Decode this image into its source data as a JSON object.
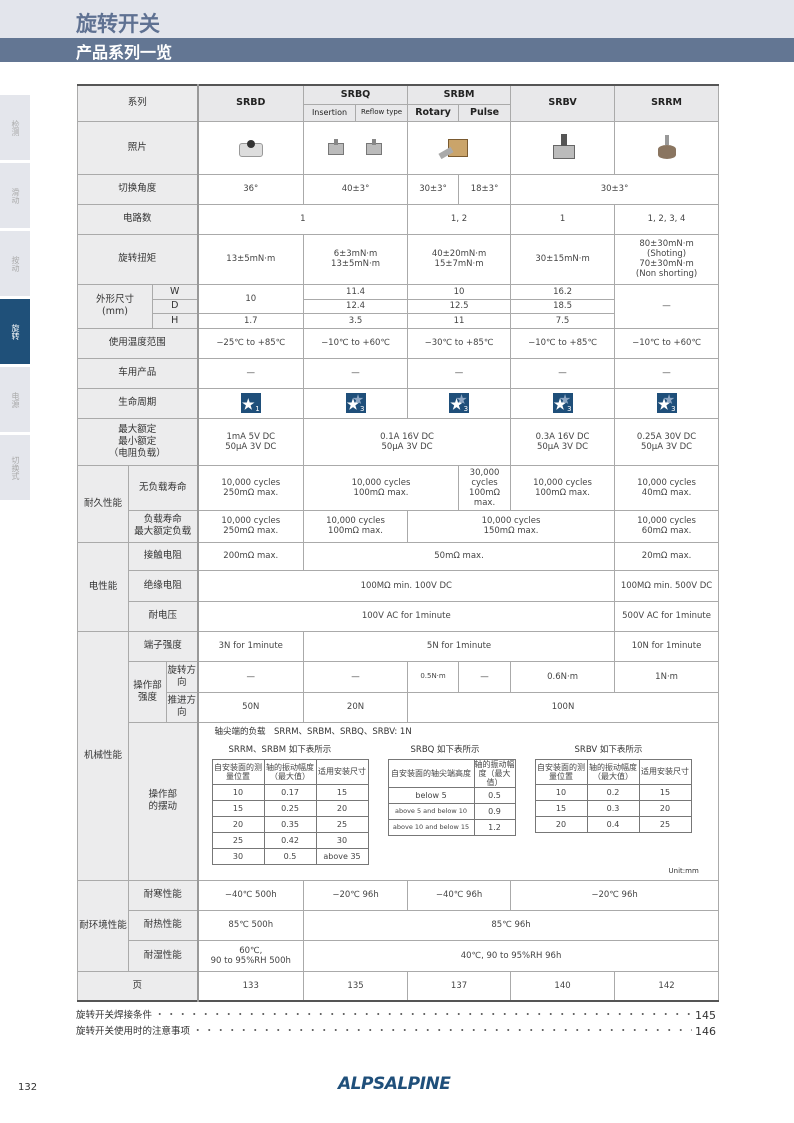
{
  "header": {
    "title": "旋转开关",
    "subtitle": "产品系列一览"
  },
  "sidebar": {
    "tabs": [
      {
        "label": "检测"
      },
      {
        "label": "滑动"
      },
      {
        "label": "按动"
      },
      {
        "label": "旋转",
        "active": true
      },
      {
        "label": "电源"
      },
      {
        "label": "切换式"
      }
    ],
    "active_color": "#1f5079"
  },
  "table": {
    "series_label": "系列",
    "cols": {
      "srbd": "SRBD",
      "srbq": "SRBQ",
      "srbq_a": "Insertion",
      "srbq_b": "Reflow type",
      "srbm": "SRBM",
      "srbm_a": "Rotary",
      "srbm_b": "Pulse",
      "srbv": "SRBV",
      "srrm": "SRRM"
    },
    "photo": {
      "label": "照片"
    },
    "angle": {
      "label": "切换角度",
      "srbd": "36°",
      "srbq": "40±3°",
      "srbm_a": "30±3°",
      "srbm_b": "18±3°",
      "srbv_srrm": "30±3°"
    },
    "circuits": {
      "label": "电路数",
      "srbd_srbq": "1",
      "srbm": "1, 2",
      "srbv": "1",
      "srrm": "1, 2, 3, 4"
    },
    "torque": {
      "label": "旋转扭矩",
      "srbd": "13±5mN·m",
      "srbq": [
        "6±3mN·m",
        "13±5mN·m"
      ],
      "srbm": [
        "40±20mN·m",
        "15±7mN·m"
      ],
      "srbv": "30±15mN·m",
      "srrm": [
        "80±30mN·m",
        "(Shoting)",
        "70±30mN·m",
        "(Non shorting)"
      ]
    },
    "dims": {
      "label": "外形尺寸",
      "unit": "(mm)",
      "w": "W",
      "d": "D",
      "h": "H",
      "srbd_wd": "10",
      "srbd_h": "1.7",
      "srbq": [
        "11.4",
        "12.4",
        "3.5"
      ],
      "srbm": [
        "10",
        "12.5",
        "11"
      ],
      "srbv": [
        "16.2",
        "18.5",
        "7.5"
      ],
      "srrm": "—"
    },
    "temp": {
      "label": "使用温度范围",
      "values": [
        "−25℃ to +85℃",
        "−10℃ to +60℃",
        "−30℃ to +85℃",
        "−10℃ to +85℃",
        "−10℃ to +60℃"
      ]
    },
    "auto": {
      "label": "车用产品",
      "values": [
        "—",
        "—",
        "—",
        "—",
        "—"
      ]
    },
    "lifecycle": {
      "label": "生命周期",
      "values": [
        "1",
        "3",
        "3",
        "3",
        "3"
      ],
      "icon": "lifecycle-star-icon",
      "color": "#1f4f7a"
    },
    "rating": {
      "label": [
        "最大额定",
        "最小额定",
        "（电阻负载）"
      ],
      "srbd": [
        "1mA 5V DC",
        "50μA 3V DC"
      ],
      "srbq_srbm": [
        "0.1A 16V DC",
        "50μA 3V DC"
      ],
      "srbv": [
        "0.3A 16V DC",
        "50μA 3V DC"
      ],
      "srrm": [
        "0.25A 30V DC",
        "50μA 3V DC"
      ]
    },
    "durability": {
      "label": "耐久性能",
      "noload": {
        "label": "无负载寿命",
        "srbd": [
          "10,000 cycles",
          "250mΩ max."
        ],
        "srbq_rot": [
          "10,000 cycles",
          "100mΩ max."
        ],
        "pulse": [
          "30,000",
          "cycles",
          "100mΩ",
          "max."
        ],
        "srbv": [
          "10,000 cycles",
          "100mΩ max."
        ],
        "srrm": [
          "10,000 cycles",
          "40mΩ max."
        ]
      },
      "load": {
        "label": [
          "负载寿命",
          "最大额定负载"
        ],
        "srbd": [
          "10,000 cycles",
          "250mΩ max."
        ],
        "srbq": [
          "10,000 cycles",
          "100mΩ max."
        ],
        "srbm_srbv": [
          "10,000 cycles",
          "150mΩ max."
        ],
        "srrm": [
          "10,000 cycles",
          "60mΩ max."
        ]
      }
    },
    "electrical": {
      "label": "电性能",
      "contact": {
        "label": "接触电阻",
        "srbd": "200mΩ max.",
        "mid": "50mΩ max.",
        "srrm": "20mΩ max."
      },
      "insulation": {
        "label": "绝缘电阻",
        "main": "100MΩ min. 100V DC",
        "srrm": "100MΩ min. 500V DC"
      },
      "voltage": {
        "label": "耐电压",
        "main": "100V AC for 1minute",
        "srrm": "500V AC for 1minute"
      }
    },
    "mechanical": {
      "label": "机械性能",
      "terminal": {
        "label": "端子强度",
        "srbd": "3N for 1minute",
        "mid": "5N for 1minute",
        "srrm": "10N for 1minute"
      },
      "op_strength": {
        "label": "操作部强度",
        "rot_label": "旋转方向",
        "push_label": "推进方向",
        "rot": [
          "—",
          "—",
          "0.5N·m",
          "—",
          "0.6N·m",
          "1N·m"
        ],
        "push": [
          "50N",
          "20N",
          "100N"
        ]
      },
      "wobble": {
        "label": "操作部的摆动",
        "note": "轴尖端的负载　SRRM、SRBM、SRBQ、SRBV: 1N",
        "unit": "Unit:mm",
        "t1": {
          "title": "SRRM、SRBM 如下表所示",
          "headers": [
            "自安装面的测量位置",
            "轴的振动幅度（最大值）",
            "适用安装尺寸"
          ],
          "rows": [
            [
              "10",
              "0.17",
              "15"
            ],
            [
              "15",
              "0.25",
              "20"
            ],
            [
              "20",
              "0.35",
              "25"
            ],
            [
              "25",
              "0.42",
              "30"
            ],
            [
              "30",
              "0.5",
              "above 35"
            ]
          ]
        },
        "t2": {
          "title": "SRBQ 如下表所示",
          "headers": [
            "自安装面的轴尖端高度",
            "轴的振动幅度（最大值）"
          ],
          "rows": [
            [
              "below 5",
              "0.5"
            ],
            [
              "above 5 and below 10",
              "0.9"
            ],
            [
              "above 10 and below 15",
              "1.2"
            ]
          ]
        },
        "t3": {
          "title": "SRBV 如下表所示",
          "headers": [
            "自安装面的测量位置",
            "轴的振动幅度（最大值）",
            "适用安装尺寸"
          ],
          "rows": [
            [
              "10",
              "0.2",
              "15"
            ],
            [
              "15",
              "0.3",
              "20"
            ],
            [
              "20",
              "0.4",
              "25"
            ]
          ]
        }
      }
    },
    "environment": {
      "label": "耐环境性能",
      "cold": {
        "label": "耐寒性能",
        "srbd": "−40℃ 500h",
        "srbq": "−20℃ 96h",
        "srbm": "−40℃ 96h",
        "rest": "−20℃ 96h"
      },
      "heat": {
        "label": "耐热性能",
        "srbd": "85℃ 500h",
        "rest": "85℃ 96h"
      },
      "humid": {
        "label": "耐湿性能",
        "srbd": [
          "60℃,",
          "90 to 95%RH  500h"
        ],
        "rest": "40℃, 90 to 95%RH 96h"
      }
    },
    "page": {
      "label": "页",
      "values": [
        "133",
        "135",
        "137",
        "140",
        "142"
      ]
    }
  },
  "toc": [
    {
      "label": "旋转开关焊接条件",
      "page": "145"
    },
    {
      "label": "旋转开关使用时的注意事项",
      "page": "146"
    }
  ],
  "footer": {
    "page_number": "132",
    "logo": "ALPSALPINE"
  }
}
